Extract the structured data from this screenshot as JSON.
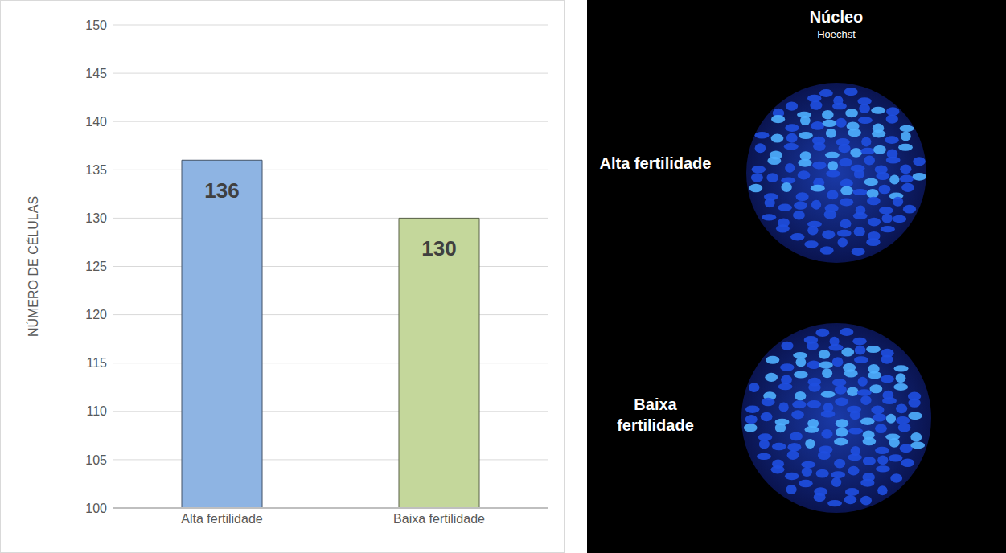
{
  "chart_data": {
    "type": "bar",
    "y_label": "NÚMERO DE CÉLULAS",
    "categories": [
      "Alta fertilidade",
      "Baixa fertilidade"
    ],
    "values": [
      136,
      130
    ],
    "colors": [
      "#8eb4e3",
      "#c4d79b"
    ],
    "ylim": [
      100,
      150
    ],
    "yticks": [
      100,
      105,
      110,
      115,
      120,
      125,
      130,
      135,
      140,
      145,
      150
    ],
    "grid": true,
    "data_labels": true
  },
  "image_panel": {
    "title": "Núcleo",
    "subtitle": "Hoechst",
    "rows": [
      "Alta fertilidade",
      "Baixa fertilidade"
    ]
  }
}
